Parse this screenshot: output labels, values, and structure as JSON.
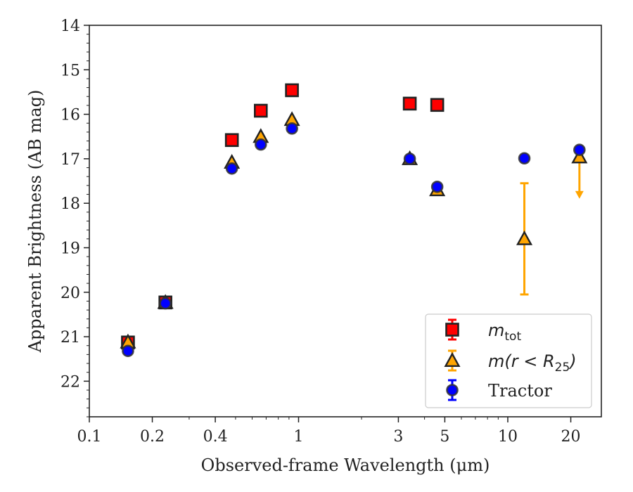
{
  "chart_data": {
    "type": "scatter",
    "xlabel": "Observed-frame Wavelength (μm)",
    "ylabel": "Apparent Brightness (AB mag)",
    "xscale": "log",
    "xlim": [
      0.1,
      28
    ],
    "ylim": [
      22.8,
      14
    ],
    "x_ticks": [
      0.1,
      0.2,
      0.4,
      1,
      3,
      5,
      10,
      20
    ],
    "x_tick_labels": [
      "0.1",
      "0.2",
      "0.4",
      "1",
      "3",
      "5",
      "10",
      "20"
    ],
    "y_ticks": [
      14,
      15,
      16,
      17,
      18,
      19,
      20,
      21,
      22
    ],
    "y_tick_labels": [
      "14",
      "15",
      "16",
      "17",
      "18",
      "19",
      "20",
      "21",
      "22"
    ],
    "grid": false,
    "legend_position": "lower-right",
    "series": [
      {
        "name": "m_tot",
        "marker": "square",
        "color": "#ff0000",
        "points": [
          {
            "x": 0.153,
            "y": 21.13
          },
          {
            "x": 0.231,
            "y": 20.23
          },
          {
            "x": 0.48,
            "y": 16.58
          },
          {
            "x": 0.66,
            "y": 15.92
          },
          {
            "x": 0.93,
            "y": 15.46
          },
          {
            "x": 3.4,
            "y": 15.76
          },
          {
            "x": 4.6,
            "y": 15.79
          }
        ]
      },
      {
        "name": "m(r < R25)",
        "marker": "triangle",
        "color": "#ffa500",
        "points": [
          {
            "x": 0.153,
            "y": 21.12
          },
          {
            "x": 0.231,
            "y": 20.23
          },
          {
            "x": 0.48,
            "y": 17.08
          },
          {
            "x": 0.66,
            "y": 16.5
          },
          {
            "x": 0.93,
            "y": 16.12
          },
          {
            "x": 3.4,
            "y": 17.0
          },
          {
            "x": 4.6,
            "y": 17.7
          },
          {
            "x": 12.0,
            "y": 18.8,
            "err_low": 17.55,
            "err_high": 20.05
          },
          {
            "x": 22.0,
            "y": 16.96,
            "upper_limit": true,
            "arrow_to": 17.85
          }
        ]
      },
      {
        "name": "Tractor",
        "marker": "circle",
        "color": "#0000ff",
        "points": [
          {
            "x": 0.153,
            "y": 21.32
          },
          {
            "x": 0.231,
            "y": 20.25
          },
          {
            "x": 0.48,
            "y": 17.22
          },
          {
            "x": 0.66,
            "y": 16.68
          },
          {
            "x": 0.93,
            "y": 16.32
          },
          {
            "x": 3.4,
            "y": 17.0
          },
          {
            "x": 4.6,
            "y": 17.63
          },
          {
            "x": 12.0,
            "y": 16.99
          },
          {
            "x": 22.0,
            "y": 16.8
          }
        ]
      }
    ],
    "legend": [
      {
        "label_main": "m",
        "label_sub": "tot"
      },
      {
        "label_text": "m(r < R",
        "label_sub": "25",
        "label_tail": ")"
      },
      {
        "label_text": "Tractor"
      }
    ]
  }
}
